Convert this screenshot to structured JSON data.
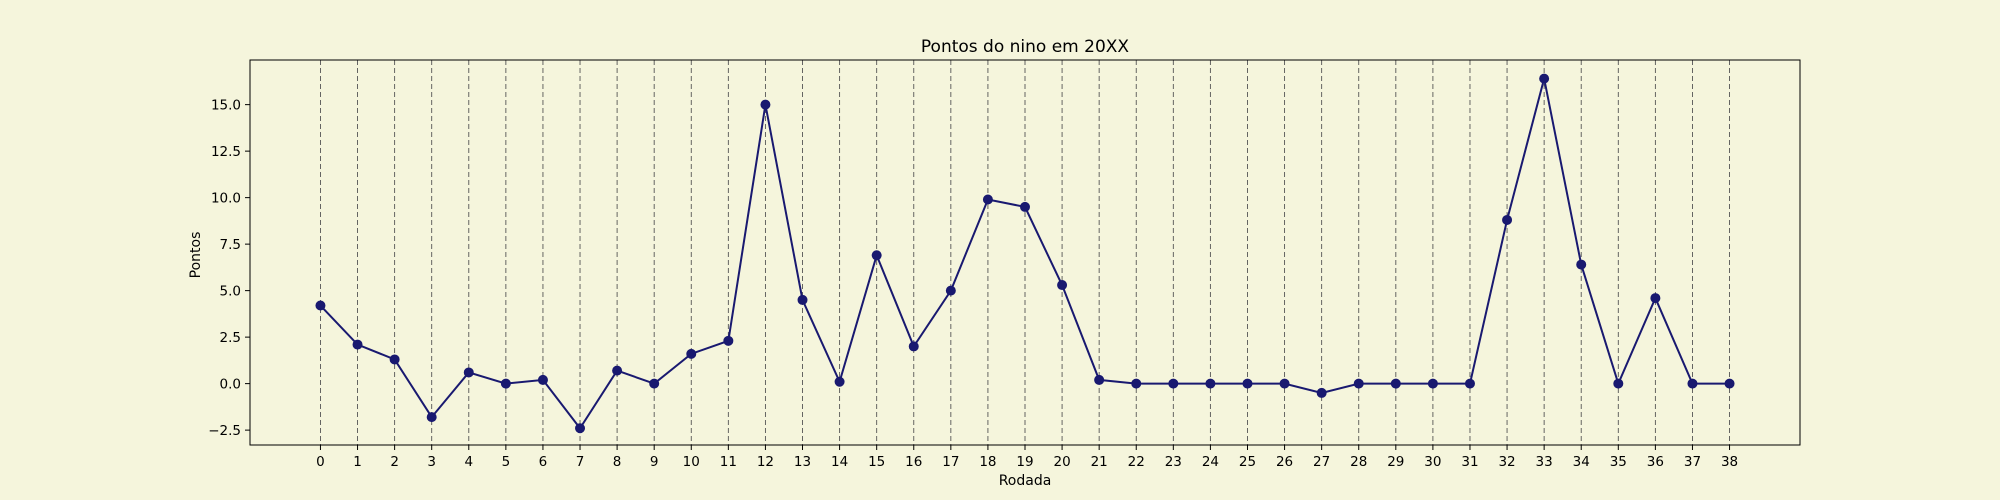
{
  "chart_data": {
    "type": "line",
    "title": "Pontos do nino em 20XX",
    "xlabel": "Rodada",
    "ylabel": "Pontos",
    "x": [
      0,
      1,
      2,
      3,
      4,
      5,
      6,
      7,
      8,
      9,
      10,
      11,
      12,
      13,
      14,
      15,
      16,
      17,
      18,
      19,
      20,
      21,
      22,
      23,
      24,
      25,
      26,
      27,
      28,
      29,
      30,
      31,
      32,
      33,
      34,
      35,
      36,
      37,
      38
    ],
    "series": [
      {
        "values": [
          4.2,
          2.1,
          1.3,
          -1.8,
          0.6,
          0.0,
          0.2,
          -2.4,
          0.7,
          0.0,
          1.6,
          2.3,
          15.0,
          4.5,
          0.1,
          6.9,
          2.0,
          5.0,
          9.9,
          9.5,
          5.3,
          0.2,
          0.0,
          0.0,
          0.0,
          0.0,
          0.0,
          -0.5,
          0.0,
          0.0,
          0.0,
          0.0,
          8.8,
          16.4,
          6.4,
          0.0,
          4.6,
          0.0,
          0.0
        ],
        "color": "#191970"
      }
    ],
    "xticks": [
      "0",
      "1",
      "2",
      "3",
      "4",
      "5",
      "6",
      "7",
      "8",
      "9",
      "10",
      "11",
      "12",
      "13",
      "14",
      "15",
      "16",
      "17",
      "18",
      "19",
      "20",
      "21",
      "22",
      "23",
      "24",
      "25",
      "26",
      "27",
      "28",
      "29",
      "30",
      "31",
      "32",
      "33",
      "34",
      "35",
      "36",
      "37",
      "38"
    ],
    "yticks": [
      "−2.5",
      "0.0",
      "2.5",
      "5.0",
      "7.5",
      "10.0",
      "12.5",
      "15.0"
    ],
    "ytick_values": [
      -2.5,
      0,
      2.5,
      5,
      7.5,
      10,
      12.5,
      15
    ],
    "xlim": [
      -1.9,
      39.9
    ],
    "ylim": [
      -3.3,
      17.4
    ],
    "grid": "vertical-dashed",
    "background": "#f5f5dc"
  }
}
